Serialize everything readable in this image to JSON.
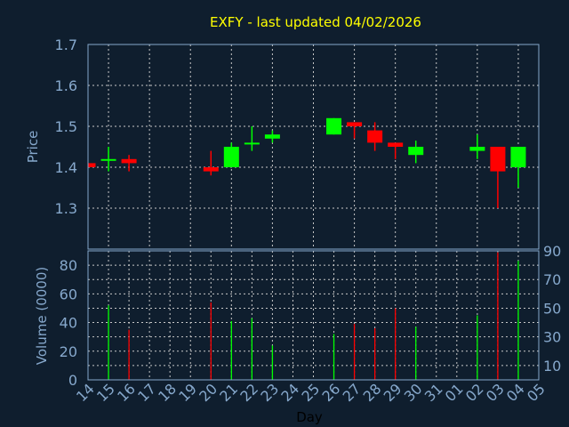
{
  "chart_data": {
    "type": "candlestick",
    "title": "EXFY - last updated 04/02/2026",
    "xlabel": "Day",
    "ylabel": "Price",
    "volume_ylabel": "Volume (0000)",
    "x_ticks": [
      "14",
      "15",
      "16",
      "17",
      "18",
      "19",
      "20",
      "21",
      "22",
      "23",
      "24",
      "25",
      "26",
      "27",
      "28",
      "29",
      "30",
      "31",
      "01",
      "02",
      "03",
      "04",
      "05"
    ],
    "y_ticks": [
      "1.3",
      "1.4",
      "1.5",
      "1.6",
      "1.7"
    ],
    "ylim": [
      1.2,
      1.7
    ],
    "volume_ticks": [
      "0",
      "10",
      "20",
      "30",
      "40",
      "50",
      "60",
      "70",
      "80",
      "90"
    ],
    "volume_ylim": [
      0,
      90
    ],
    "grid": true,
    "colors": {
      "up": "#00ff00",
      "down": "#ff0000",
      "background": "#0f1e2e",
      "title": "#ffff00",
      "axis": "#86a8cc"
    },
    "candles": [
      {
        "day": "14",
        "open": 1.41,
        "high": 1.41,
        "low": 1.4,
        "close": 1.4,
        "volume": 0
      },
      {
        "day": "15",
        "open": 1.419,
        "high": 1.45,
        "low": 1.39,
        "close": 1.42,
        "volume": 52
      },
      {
        "day": "16",
        "open": 1.42,
        "high": 1.43,
        "low": 1.39,
        "close": 1.41,
        "volume": 35
      },
      {
        "day": "20",
        "open": 1.4,
        "high": 1.44,
        "low": 1.38,
        "close": 1.39,
        "volume": 54
      },
      {
        "day": "21",
        "open": 1.4,
        "high": 1.46,
        "low": 1.4,
        "close": 1.45,
        "volume": 41
      },
      {
        "day": "22",
        "open": 1.459,
        "high": 1.5,
        "low": 1.44,
        "close": 1.46,
        "volume": 43
      },
      {
        "day": "23",
        "open": 1.47,
        "high": 1.49,
        "low": 1.46,
        "close": 1.48,
        "volume": 24
      },
      {
        "day": "26",
        "open": 1.48,
        "high": 1.52,
        "low": 1.48,
        "close": 1.52,
        "volume": 32
      },
      {
        "day": "27",
        "open": 1.51,
        "high": 1.51,
        "low": 1.47,
        "close": 1.5,
        "volume": 39
      },
      {
        "day": "28",
        "open": 1.49,
        "high": 1.51,
        "low": 1.44,
        "close": 1.46,
        "volume": 36
      },
      {
        "day": "29",
        "open": 1.46,
        "high": 1.46,
        "low": 1.42,
        "close": 1.45,
        "volume": 50
      },
      {
        "day": "30",
        "open": 1.43,
        "high": 1.465,
        "low": 1.41,
        "close": 1.45,
        "volume": 37
      },
      {
        "day": "02",
        "open": 1.44,
        "high": 1.48,
        "low": 1.42,
        "close": 1.45,
        "volume": 45
      },
      {
        "day": "03",
        "open": 1.45,
        "high": 1.45,
        "low": 1.3,
        "close": 1.39,
        "volume": 89
      },
      {
        "day": "04",
        "open": 1.4,
        "high": 1.45,
        "low": 1.35,
        "close": 1.45,
        "volume": 83
      }
    ]
  }
}
